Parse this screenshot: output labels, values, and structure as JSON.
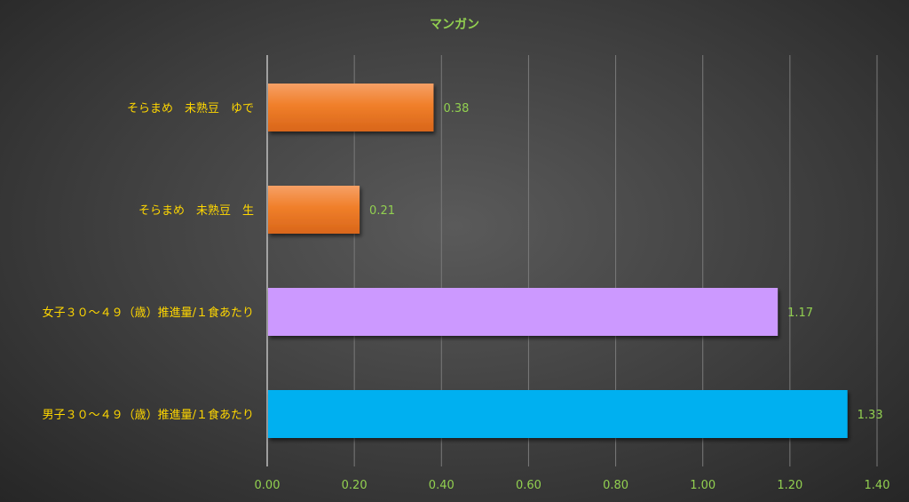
{
  "chart_data": {
    "type": "bar",
    "orientation": "horizontal",
    "title": "マンガン",
    "categories": [
      "そらまめ　未熟豆　ゆで",
      "そらまめ　未熟豆　生",
      "女子３０～４９（歳）推進量/１食あたり",
      "男子３０～４９（歳）推進量/１食あたり"
    ],
    "values": [
      0.38,
      0.21,
      1.17,
      1.33
    ],
    "value_labels": [
      "0.38",
      "0.21",
      "1.17",
      "1.33"
    ],
    "bar_colors": [
      "#f07f2a",
      "#f07f2a",
      "#cc99ff",
      "#00b0f0"
    ],
    "x_ticks": [
      "0.00",
      "0.20",
      "0.40",
      "0.60",
      "0.80",
      "1.00",
      "1.20",
      "1.40"
    ],
    "xlim": [
      0,
      1.4
    ],
    "grid": true,
    "legend": "none",
    "colors": {
      "title": "#92d050",
      "category_labels": "#ffd700",
      "tick_labels": "#92d050",
      "data_labels": "#92d050",
      "gridlines": "#7a7a7a",
      "axis_line": "#bfbfbf"
    }
  }
}
